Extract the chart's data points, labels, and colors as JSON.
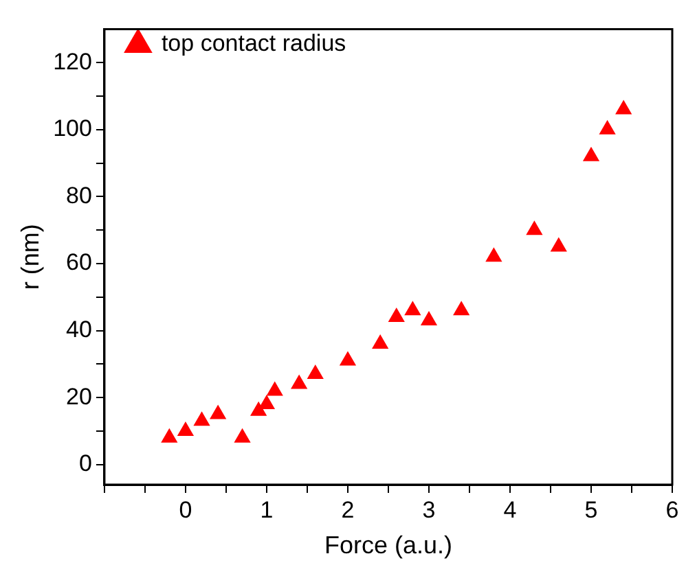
{
  "chart_data": {
    "type": "scatter",
    "xlabel": "Force (a.u.)",
    "ylabel": "r (nm)",
    "xlim": [
      -1,
      6
    ],
    "ylim": [
      -6,
      130
    ],
    "xticks": [
      {
        "value": -1,
        "label": null
      },
      {
        "value": -0.5,
        "label": null
      },
      0,
      {
        "value": 0.5,
        "label": null
      },
      1,
      {
        "value": 1.5,
        "label": null
      },
      2,
      {
        "value": 2.5,
        "label": null
      },
      3,
      {
        "value": 3.5,
        "label": null
      },
      4,
      {
        "value": 4.5,
        "label": null
      },
      5,
      {
        "value": 5.5,
        "label": null
      },
      6
    ],
    "yticks": [
      0,
      {
        "value": 10,
        "label": null
      },
      20,
      {
        "value": 30,
        "label": null
      },
      40,
      {
        "value": 50,
        "label": null
      },
      60,
      {
        "value": 70,
        "label": null
      },
      80,
      {
        "value": 90,
        "label": null
      },
      100,
      {
        "value": 110,
        "label": null
      },
      120
    ],
    "grid": false,
    "legend": "top left",
    "marker": "triangle",
    "series": [
      {
        "name": "top contact radius",
        "color": "#ff0000",
        "x": [
          -0.2,
          0,
          0.2,
          0.4,
          0.7,
          0.9,
          1.0,
          1.1,
          1.4,
          1.6,
          2.0,
          2.4,
          2.6,
          2.8,
          3.0,
          3.4,
          3.8,
          4.3,
          4.6,
          5.0,
          5.2,
          5.4
        ],
        "values": [
          8,
          10,
          13,
          15,
          8,
          16,
          18,
          22,
          24,
          27,
          31,
          36,
          44,
          46,
          43,
          46,
          62,
          70,
          65,
          92,
          100,
          106
        ]
      }
    ]
  }
}
